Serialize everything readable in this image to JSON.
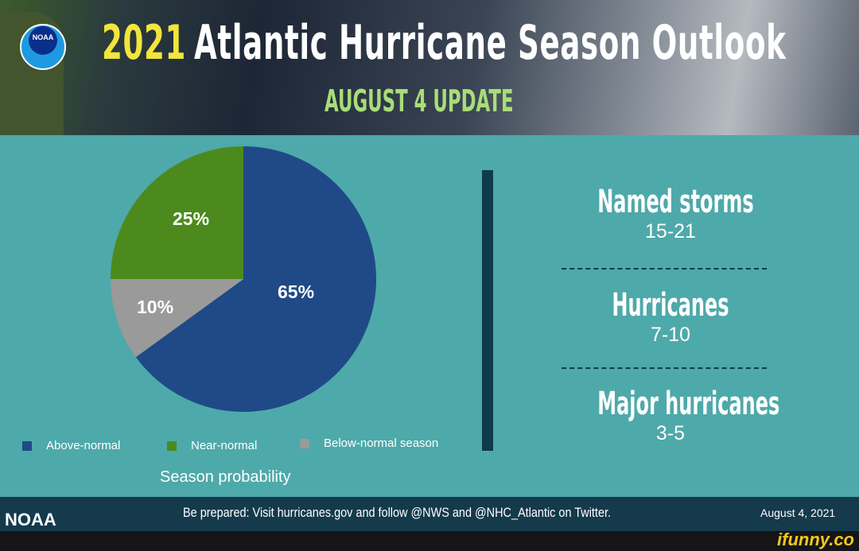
{
  "header": {
    "logo_text": "NOAA",
    "year": "2021",
    "title": "Atlantic Hurricane Season Outlook",
    "subtitle": "AUGUST 4 UPDATE"
  },
  "chart_data": {
    "type": "pie",
    "title": "Season probability",
    "categories": [
      "Above-normal",
      "Near-normal",
      "Below-normal season"
    ],
    "values": [
      65,
      25,
      10
    ],
    "labels": [
      "65%",
      "25%",
      "10%"
    ],
    "colors": [
      "#1f4a87",
      "#4c8a1d",
      "#9a9a9a"
    ],
    "legend_placement": "bottom"
  },
  "stats": [
    {
      "label": "Named storms",
      "value": "15-21"
    },
    {
      "label": "Hurricanes",
      "value": "7-10"
    },
    {
      "label": "Major hurricanes",
      "value": "3-5"
    }
  ],
  "footer": {
    "org": "NOAA",
    "message": "Be prepared: Visit hurricanes.gov and follow @NWS and @NHC_Atlantic on Twitter.",
    "date": "August 4, 2021"
  },
  "watermark": "ifunny.co"
}
